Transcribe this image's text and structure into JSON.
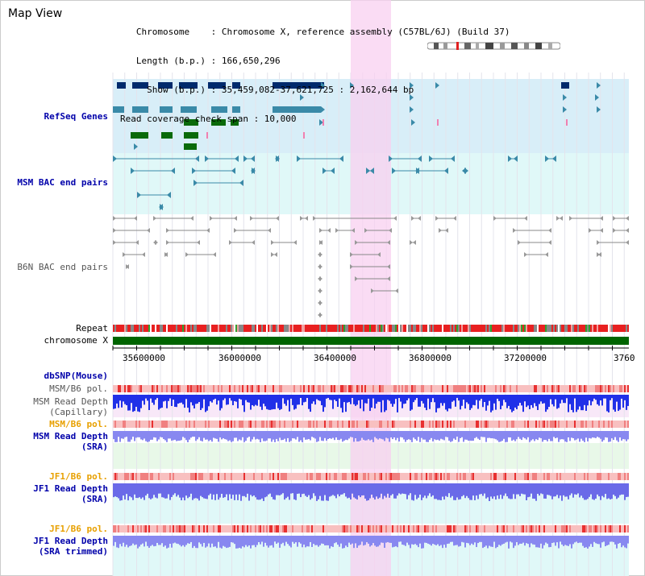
{
  "title": "Map View",
  "info_lines": [
    "   Chromosome    : Chromosome X, reference assembly (C57BL/6J) (Build 37)",
    "   Length (b.p.) : 166,650,296",
    "     Show (b.p.) : 35,459,082-37,621,725 : 2,162,644 bp",
    "Read coverage check span : 10,000"
  ],
  "tracks": {
    "refseq": "RefSeq Genes",
    "msm_bac": "MSM BAC end pairs",
    "b6n_bac": "B6N BAC end pairs",
    "repeat": "Repeat",
    "chromosome": "chromosome X",
    "dbsnp": "dbSNP(Mouse)",
    "msm_b6_pol_1": "MSM/B6 pol.",
    "msm_depth_cap_1": "MSM Read Depth",
    "msm_depth_cap_2": "(Capillary)",
    "msm_b6_pol_2": "MSM/B6 pol.",
    "msm_depth_sra_1": "MSM Read Depth",
    "msm_depth_sra_2": "(SRA)",
    "jf1_b6_pol_1": "JF1/B6 pol.",
    "jf1_depth_sra_1": "JF1 Read Depth",
    "jf1_depth_sra_2": "(SRA)",
    "jf1_b6_pol_2": "JF1/B6 pol.",
    "jf1_depth_trim_1": "JF1 Read Depth",
    "jf1_depth_trim_2": "(SRA trimmed)"
  },
  "axis_ticks": [
    "35600000",
    "36000000",
    "36400000",
    "36800000",
    "37200000",
    "3760"
  ],
  "colors": {
    "highlight": "#f8d0f0",
    "refseq_bg": "#d8eef8",
    "msm_bac_bg": "#e0f8f8",
    "gene_dark": "#002a6c",
    "gene_mid": "#3a8aa8",
    "gene_green": "#0a6a0a",
    "chromosome_bar": "#006400",
    "depth_blue": "#2030e8",
    "depth_light": "#8888f0",
    "pol_red": "#e83030"
  }
}
